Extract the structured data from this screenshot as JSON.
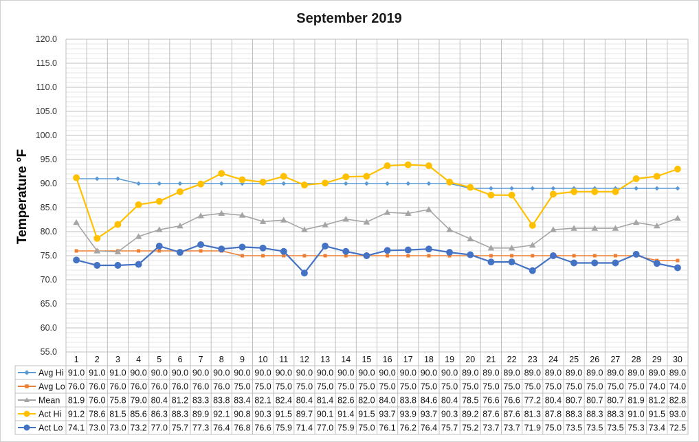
{
  "chart_data": {
    "type": "line",
    "title": "September 2019",
    "ylabel": "Temperature °F",
    "ylim": [
      55.0,
      120.0
    ],
    "ytick_step": 5,
    "ytick_labels": [
      "55.0",
      "60.0",
      "65.0",
      "70.0",
      "75.0",
      "80.0",
      "85.0",
      "90.0",
      "95.0",
      "100.0",
      "105.0",
      "110.0",
      "115.0",
      "120.0"
    ],
    "grid": true,
    "data_table": true,
    "categories": [
      "1",
      "2",
      "3",
      "4",
      "5",
      "6",
      "7",
      "8",
      "9",
      "10",
      "11",
      "12",
      "13",
      "14",
      "15",
      "16",
      "17",
      "18",
      "19",
      "20",
      "21",
      "22",
      "23",
      "24",
      "25",
      "26",
      "27",
      "28",
      "29",
      "30"
    ],
    "series": [
      {
        "name": "Avg Hi",
        "color": "#5B9BD5",
        "marker": "diamond",
        "values": [
          91.0,
          91.0,
          91.0,
          90.0,
          90.0,
          90.0,
          90.0,
          90.0,
          90.0,
          90.0,
          90.0,
          90.0,
          90.0,
          90.0,
          90.0,
          90.0,
          90.0,
          90.0,
          90.0,
          89.0,
          89.0,
          89.0,
          89.0,
          89.0,
          89.0,
          89.0,
          89.0,
          89.0,
          89.0,
          89.0
        ]
      },
      {
        "name": "Avg Lo",
        "color": "#ED7D31",
        "marker": "square",
        "values": [
          76.0,
          76.0,
          76.0,
          76.0,
          76.0,
          76.0,
          76.0,
          76.0,
          75.0,
          75.0,
          75.0,
          75.0,
          75.0,
          75.0,
          75.0,
          75.0,
          75.0,
          75.0,
          75.0,
          75.0,
          75.0,
          75.0,
          75.0,
          75.0,
          75.0,
          75.0,
          75.0,
          75.0,
          74.0,
          74.0
        ]
      },
      {
        "name": "Mean",
        "color": "#A5A5A5",
        "marker": "triangle",
        "values": [
          81.9,
          76.0,
          75.8,
          79.0,
          80.4,
          81.2,
          83.3,
          83.8,
          83.4,
          82.1,
          82.4,
          80.4,
          81.4,
          82.6,
          82.0,
          84.0,
          83.8,
          84.6,
          80.4,
          78.5,
          76.6,
          76.6,
          77.2,
          80.4,
          80.7,
          80.7,
          80.7,
          81.9,
          81.2,
          82.8
        ]
      },
      {
        "name": "Act Hi",
        "color": "#FFC000",
        "marker": "circle",
        "values": [
          91.2,
          78.6,
          81.5,
          85.6,
          86.3,
          88.3,
          89.9,
          92.1,
          90.8,
          90.3,
          91.5,
          89.7,
          90.1,
          91.4,
          91.5,
          93.7,
          93.9,
          93.7,
          90.3,
          89.2,
          87.6,
          87.6,
          81.3,
          87.8,
          88.3,
          88.3,
          88.3,
          91.0,
          91.5,
          93.0
        ]
      },
      {
        "name": "Act Lo",
        "color": "#4472C4",
        "marker": "circle",
        "values": [
          74.1,
          73.0,
          73.0,
          73.2,
          77.0,
          75.7,
          77.3,
          76.4,
          76.8,
          76.6,
          75.9,
          71.4,
          77.0,
          75.9,
          75.0,
          76.1,
          76.2,
          76.4,
          75.7,
          75.2,
          73.7,
          73.7,
          71.9,
          75.0,
          73.5,
          73.5,
          73.5,
          75.3,
          73.4,
          72.5
        ]
      }
    ]
  }
}
